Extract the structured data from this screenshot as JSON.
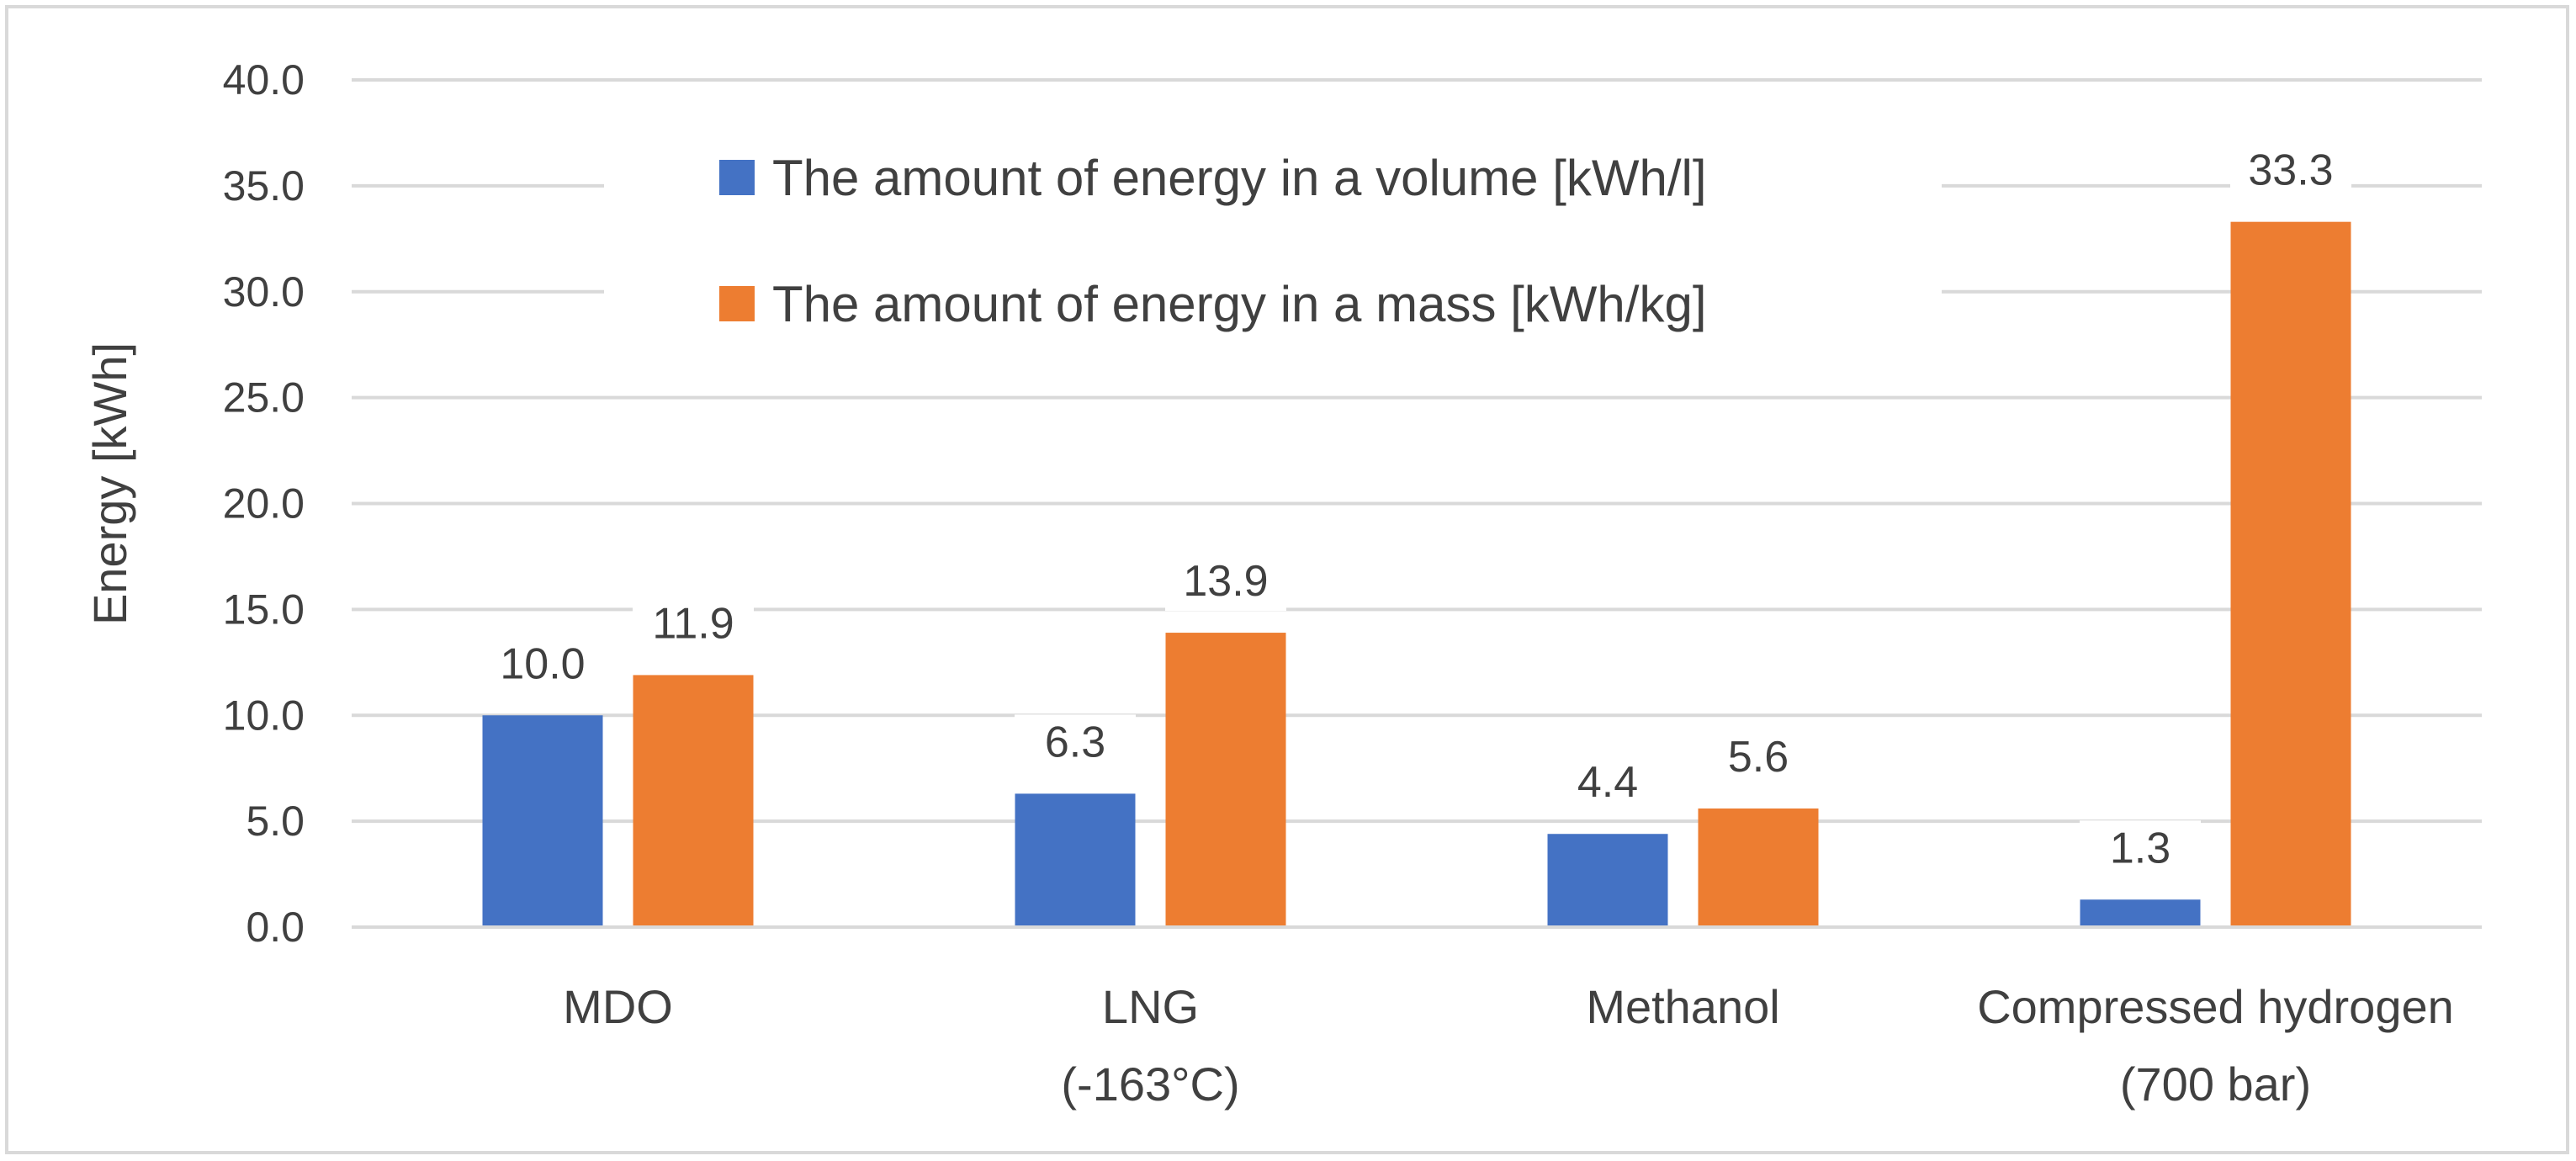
{
  "chart_data": {
    "type": "bar",
    "title": "",
    "xlabel": "",
    "ylabel": "Energy [kWh]",
    "ylim": [
      0,
      40
    ],
    "ytick_step": 5,
    "yticks": [
      "0.0",
      "5.0",
      "10.0",
      "15.0",
      "20.0",
      "25.0",
      "30.0",
      "35.0",
      "40.0"
    ],
    "categories": [
      [
        "MDO"
      ],
      [
        "LNG",
        "(-163°C)"
      ],
      [
        "Methanol"
      ],
      [
        "Compressed hydrogen",
        "(700 bar)"
      ]
    ],
    "series": [
      {
        "name": "The amount of energy in a volume [kWh/l]",
        "color": "#4472c4",
        "values": [
          10.0,
          6.3,
          4.4,
          1.3
        ],
        "labels": [
          "10.0",
          "6.3",
          "4.4",
          "1.3"
        ]
      },
      {
        "name": "The amount of energy in a mass [kWh/kg]",
        "color": "#ed7d31",
        "values": [
          11.9,
          13.9,
          5.6,
          33.3
        ],
        "labels": [
          "11.9",
          "13.9",
          "5.6",
          "33.3"
        ]
      }
    ],
    "grid": true,
    "legend_position": "top-center"
  }
}
